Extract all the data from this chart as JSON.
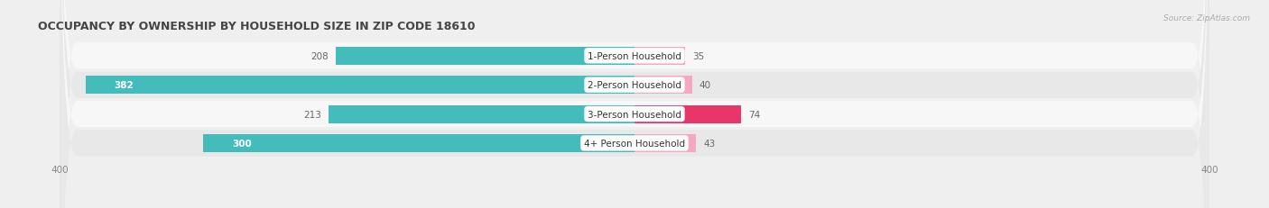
{
  "title": "OCCUPANCY BY OWNERSHIP BY HOUSEHOLD SIZE IN ZIP CODE 18610",
  "source": "Source: ZipAtlas.com",
  "categories": [
    "1-Person Household",
    "2-Person Household",
    "3-Person Household",
    "4+ Person Household"
  ],
  "owner_values": [
    208,
    382,
    213,
    300
  ],
  "renter_values": [
    35,
    40,
    74,
    43
  ],
  "owner_color": "#45BCBC",
  "renter_colors": [
    "#F5A8C0",
    "#F5A8C0",
    "#E8366A",
    "#F5A8C0"
  ],
  "background_color": "#EFEFEF",
  "row_bg_even": "#F7F7F7",
  "row_bg_odd": "#E8E8E8",
  "xlim_abs": 400
}
